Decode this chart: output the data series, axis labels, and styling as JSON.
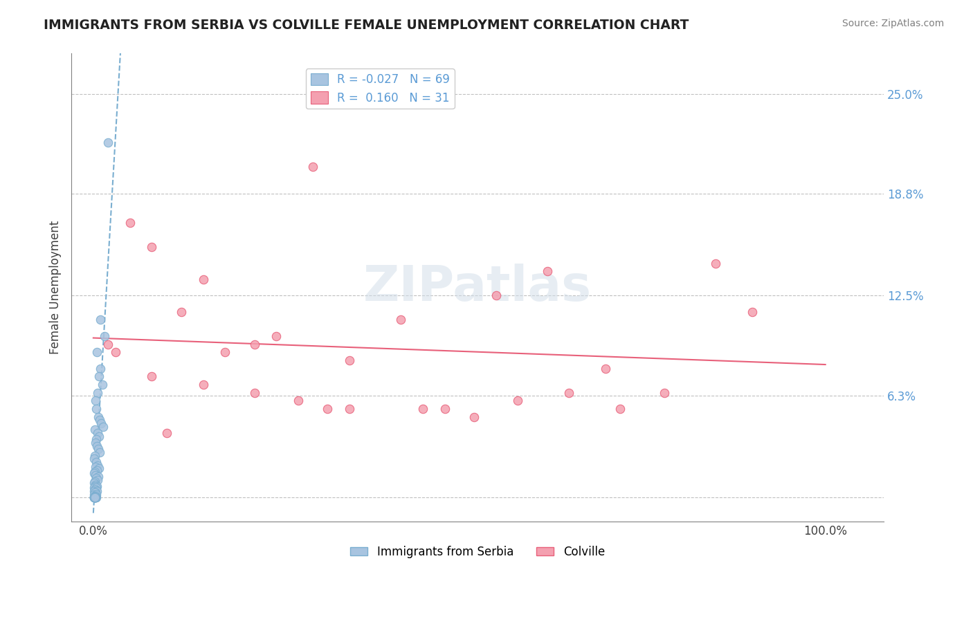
{
  "title": "IMMIGRANTS FROM SERBIA VS COLVILLE FEMALE UNEMPLOYMENT CORRELATION CHART",
  "source": "Source: ZipAtlas.com",
  "ylabel": "Female Unemployment",
  "xlabel": "",
  "watermark": "ZIPatlas",
  "legend_serbia": "Immigrants from Serbia",
  "legend_colville": "Colville",
  "r_serbia": -0.027,
  "n_serbia": 69,
  "r_colville": 0.16,
  "n_colville": 31,
  "yticks": [
    0.0,
    0.063,
    0.125,
    0.188,
    0.25
  ],
  "ytick_labels": [
    "",
    "6.3%",
    "12.5%",
    "18.8%",
    "25.0%"
  ],
  "xticks": [
    0.0,
    1.0
  ],
  "xtick_labels": [
    "0.0%",
    "100.0%"
  ],
  "xlim": [
    -0.03,
    1.08
  ],
  "ylim": [
    -0.015,
    0.275
  ],
  "color_serbia": "#a8c4e0",
  "color_colville": "#f4a0b0",
  "trendline_serbia_color": "#7aaed0",
  "trendline_colville_color": "#e8607a",
  "serbia_x": [
    0.02,
    0.01,
    0.015,
    0.005,
    0.01,
    0.008,
    0.012,
    0.006,
    0.003,
    0.004,
    0.007,
    0.009,
    0.011,
    0.013,
    0.002,
    0.006,
    0.008,
    0.004,
    0.003,
    0.005,
    0.007,
    0.009,
    0.002,
    0.001,
    0.004,
    0.006,
    0.003,
    0.008,
    0.005,
    0.002,
    0.001,
    0.003,
    0.007,
    0.004,
    0.006,
    0.002,
    0.001,
    0.003,
    0.005,
    0.002,
    0.001,
    0.004,
    0.003,
    0.002,
    0.001,
    0.005,
    0.003,
    0.002,
    0.001,
    0.004,
    0.002,
    0.003,
    0.001,
    0.002,
    0.004,
    0.003,
    0.001,
    0.002,
    0.003,
    0.001,
    0.002,
    0.001,
    0.003,
    0.002,
    0.001,
    0.002,
    0.001,
    0.003,
    0.002
  ],
  "serbia_y": [
    0.22,
    0.11,
    0.1,
    0.09,
    0.08,
    0.075,
    0.07,
    0.065,
    0.06,
    0.055,
    0.05,
    0.048,
    0.046,
    0.044,
    0.042,
    0.04,
    0.038,
    0.036,
    0.034,
    0.032,
    0.03,
    0.028,
    0.026,
    0.024,
    0.022,
    0.02,
    0.019,
    0.018,
    0.017,
    0.016,
    0.015,
    0.014,
    0.013,
    0.012,
    0.011,
    0.01,
    0.009,
    0.008,
    0.007,
    0.007,
    0.006,
    0.006,
    0.005,
    0.005,
    0.004,
    0.004,
    0.003,
    0.003,
    0.002,
    0.002,
    0.001,
    0.001,
    0.0,
    0.0,
    0.0,
    0.0,
    0.0,
    0.0,
    0.0,
    0.0,
    0.0,
    0.0,
    0.0,
    0.0,
    0.0,
    0.0,
    0.0,
    0.0,
    0.0
  ],
  "colville_x": [
    0.3,
    0.05,
    0.08,
    0.15,
    0.12,
    0.25,
    0.35,
    0.18,
    0.22,
    0.42,
    0.55,
    0.62,
    0.7,
    0.78,
    0.32,
    0.45,
    0.52,
    0.02,
    0.08,
    0.15,
    0.22,
    0.28,
    0.35,
    0.48,
    0.58,
    0.65,
    0.72,
    0.85,
    0.9,
    0.03,
    0.1
  ],
  "colville_y": [
    0.205,
    0.17,
    0.155,
    0.135,
    0.115,
    0.1,
    0.085,
    0.09,
    0.095,
    0.11,
    0.125,
    0.14,
    0.08,
    0.065,
    0.055,
    0.055,
    0.05,
    0.095,
    0.075,
    0.07,
    0.065,
    0.06,
    0.055,
    0.055,
    0.06,
    0.065,
    0.055,
    0.145,
    0.115,
    0.09,
    0.04
  ]
}
